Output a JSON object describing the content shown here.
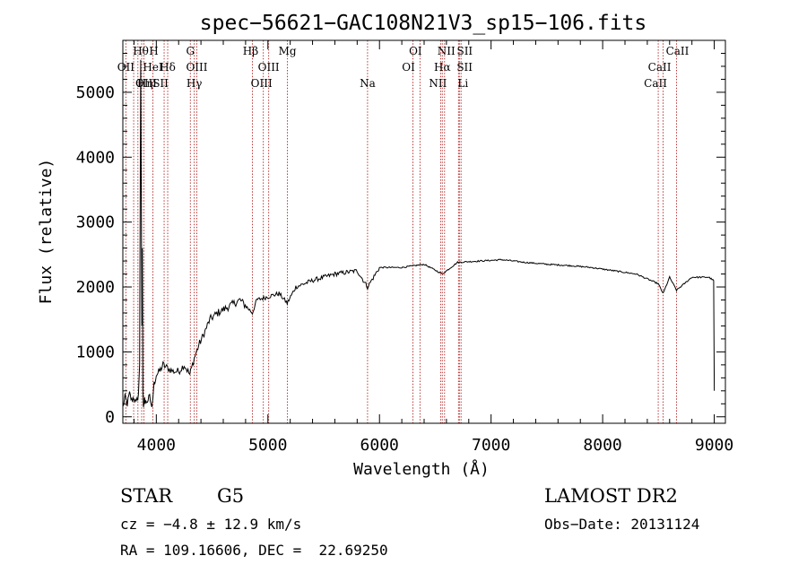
{
  "chart_data": {
    "type": "line",
    "title": "spec−56621−GAC108N21V3_sp15−106.fits",
    "xlabel": "Wavelength (Å)",
    "ylabel": "Flux (relative)",
    "xlim": [
      3700,
      9100
    ],
    "ylim": [
      -100,
      5800
    ],
    "xticks": [
      4000,
      5000,
      6000,
      7000,
      8000,
      9000
    ],
    "yticks": [
      0,
      1000,
      2000,
      3000,
      4000,
      5000
    ],
    "grid": false,
    "series": [
      {
        "name": "flux",
        "x": [
          3700,
          3720,
          3740,
          3760,
          3780,
          3800,
          3820,
          3840,
          3850,
          3860,
          3870,
          3875,
          3880,
          3885,
          3890,
          3895,
          3900,
          3920,
          3940,
          3960,
          3970,
          3980,
          4000,
          4030,
          4060,
          4100,
          4150,
          4200,
          4250,
          4300,
          4340,
          4380,
          4420,
          4480,
          4550,
          4650,
          4750,
          4861,
          4900,
          5000,
          5100,
          5173,
          5250,
          5400,
          5600,
          5800,
          5893,
          6000,
          6200,
          6400,
          6563,
          6700,
          6900,
          7100,
          7300,
          7500,
          7700,
          7900,
          8100,
          8300,
          8498,
          8542,
          8600,
          8662,
          8800,
          8950,
          8995,
          9000
        ],
        "y": [
          150,
          300,
          200,
          350,
          250,
          300,
          200,
          350,
          800,
          5500,
          1400,
          2600,
          400,
          150,
          200,
          300,
          200,
          250,
          300,
          150,
          300,
          500,
          650,
          700,
          800,
          750,
          700,
          700,
          800,
          650,
          900,
          1100,
          1250,
          1500,
          1600,
          1700,
          1800,
          1600,
          1800,
          1850,
          1900,
          1750,
          2000,
          2100,
          2200,
          2250,
          2000,
          2300,
          2300,
          2350,
          2200,
          2380,
          2400,
          2420,
          2380,
          2350,
          2330,
          2300,
          2250,
          2200,
          2050,
          1900,
          2150,
          1950,
          2150,
          2150,
          2100,
          400
        ]
      }
    ],
    "annotations": [
      {
        "label": "Hθ",
        "x": 3797
      },
      {
        "label": "OII",
        "x": 3727
      },
      {
        "label": "OIII",
        "x": 3869
      },
      {
        "label": "HeI",
        "x": 3889
      },
      {
        "label": "Hη",
        "x": 3835
      },
      {
        "label": "H",
        "x": 3969
      },
      {
        "label": "Hδ",
        "x": 4102
      },
      {
        "label": "SII",
        "x": 4070
      },
      {
        "label": "G",
        "x": 4305
      },
      {
        "label": "OIII",
        "x": 4363
      },
      {
        "label": "Hγ",
        "x": 4340
      },
      {
        "label": "Hβ",
        "x": 4861
      },
      {
        "label": "OIII",
        "x": 5007
      },
      {
        "label": "OIII",
        "x": 4959
      },
      {
        "label": "Mg",
        "x": 5175
      },
      {
        "label": "Na",
        "x": 5893
      },
      {
        "label": "OI",
        "x": 6363
      },
      {
        "label": "OI",
        "x": 6300
      },
      {
        "label": "NII",
        "x": 6583
      },
      {
        "label": "SII",
        "x": 6716
      },
      {
        "label": "Hα",
        "x": 6563
      },
      {
        "label": "SII",
        "x": 6731
      },
      {
        "label": "NII",
        "x": 6548
      },
      {
        "label": "Li",
        "x": 6708
      },
      {
        "label": "CaII",
        "x": 8662
      },
      {
        "label": "CaII",
        "x": 8542
      },
      {
        "label": "CaII",
        "x": 8498
      }
    ],
    "line_color": "#000000",
    "marker_color": "#b22222"
  },
  "info": {
    "object_class": "STAR",
    "subclass": "G5",
    "survey": "LAMOST DR2",
    "redshift": "cz = −4.8 ± 12.9 km/s",
    "obs_date": "Obs−Date: 20131124",
    "coords": "RA = 109.16606, DEC =  22.69250"
  }
}
